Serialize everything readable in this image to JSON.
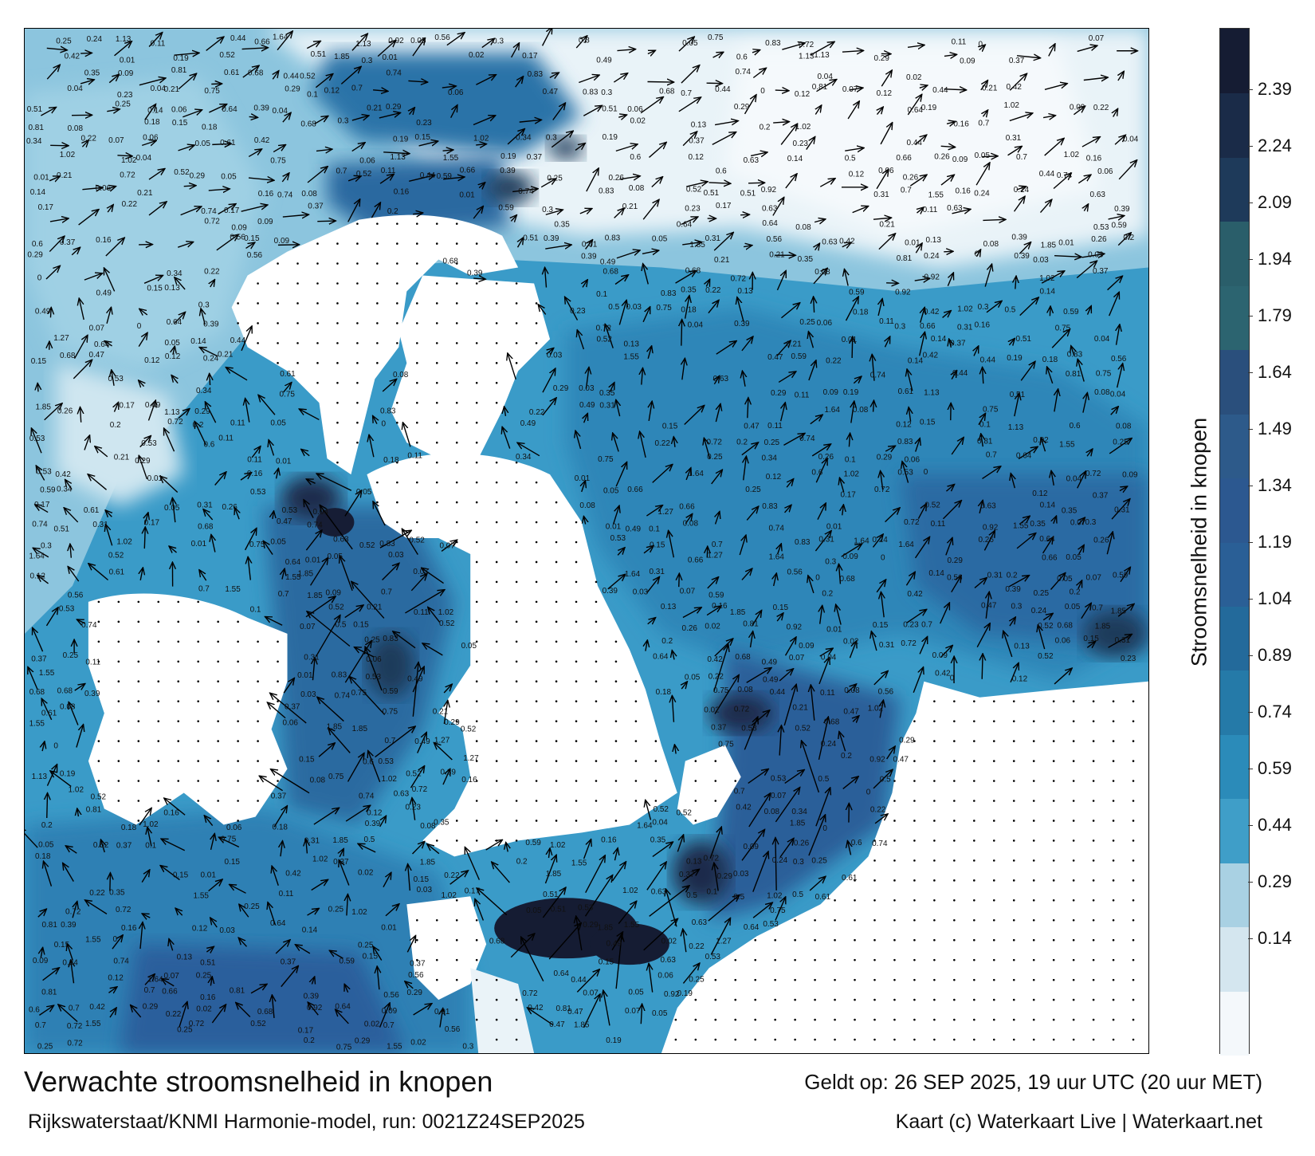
{
  "title": "Verwachte stroomsnelheid in knopen",
  "subtitle": "Rijkswaterstaat/KNMI Harmonie-model, run: 0021Z24SEP2025",
  "valid_time": "Geldt op: 26 SEP 2025, 19 uur UTC (20 uur MET)",
  "credit": "Kaart (c) Waterkaart Live | Waterkaart.net",
  "colorbar": {
    "label": "Stroomsnelheid in knopen",
    "ticks": [
      "0.14",
      "0.29",
      "0.44",
      "0.59",
      "0.74",
      "0.89",
      "1.04",
      "1.19",
      "1.34",
      "1.49",
      "1.64",
      "1.79",
      "1.94",
      "2.09",
      "2.24",
      "2.39"
    ],
    "colors": [
      "#f4f8fb",
      "#d4e6ef",
      "#a9d1e3",
      "#3f9ec8",
      "#2b8bb9",
      "#257aa8",
      "#236a9b",
      "#2a5f96",
      "#2c5890",
      "#2d5a8a",
      "#2a4f7c",
      "#2c6470",
      "#2a5e6a",
      "#1e3a5a",
      "#1a2b48",
      "#151c33"
    ]
  },
  "sample_labels": [
    "0.5",
    "0.29",
    "0.35",
    "0.31",
    "0.51",
    "0.42",
    "0.19",
    "0.2",
    "0.21",
    "0.22",
    "0.17",
    "0.26",
    "0.24",
    "0.15",
    "0.18",
    "0.13",
    "0.12",
    "0.16",
    "0.06",
    "0.05",
    "0.44",
    "0.34",
    "0.23",
    "0.25",
    "0.3",
    "0.37",
    "0.47",
    "0.63",
    "0.56",
    "0.59",
    "0.6",
    "0.72",
    "0.53",
    "0.49",
    "0.39",
    "0.64",
    "0.52",
    "0.61",
    "0.68",
    "0.66",
    "0.7",
    "0.74",
    "0.75",
    "0.83",
    "0.81",
    "0.92",
    "1.02",
    "1.13",
    "1.27",
    "1.55",
    "1.64",
    "1.85",
    "0.01",
    "0.02",
    "0.03",
    "0.04",
    "0.07",
    "0.08",
    "0.09",
    "0.1",
    "0.11",
    "0.14",
    "0"
  ]
}
